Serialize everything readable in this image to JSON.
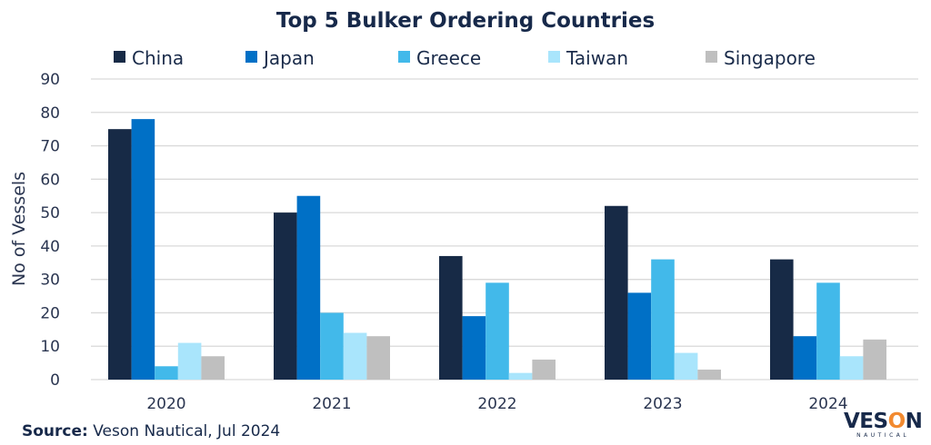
{
  "chart_data": {
    "type": "bar",
    "title": "Top 5 Bulker Ordering Countries",
    "xlabel": "",
    "ylabel": "No of Vessels",
    "ylim": [
      0,
      90
    ],
    "yticks": [
      0,
      10,
      20,
      30,
      40,
      50,
      60,
      70,
      80,
      90
    ],
    "grid": true,
    "legend_position": "top",
    "categories": [
      "2020",
      "2021",
      "2022",
      "2023",
      "2024"
    ],
    "series": [
      {
        "name": "China",
        "color": "#172a46",
        "values": [
          75,
          50,
          37,
          52,
          36
        ]
      },
      {
        "name": "Japan",
        "color": "#0070c6",
        "values": [
          78,
          55,
          19,
          26,
          13
        ]
      },
      {
        "name": "Greece",
        "color": "#42b9ea",
        "values": [
          4,
          20,
          29,
          36,
          29
        ]
      },
      {
        "name": "Taiwan",
        "color": "#a9e5fc",
        "values": [
          11,
          14,
          2,
          8,
          7
        ]
      },
      {
        "name": "Singapore",
        "color": "#bfbfbf",
        "values": [
          7,
          13,
          6,
          3,
          12
        ]
      }
    ]
  },
  "source": {
    "label": "Source:",
    "text": "Veson Nautical, Jul 2024"
  },
  "logo": {
    "main": "VESON",
    "sub": "NAUTICAL"
  }
}
